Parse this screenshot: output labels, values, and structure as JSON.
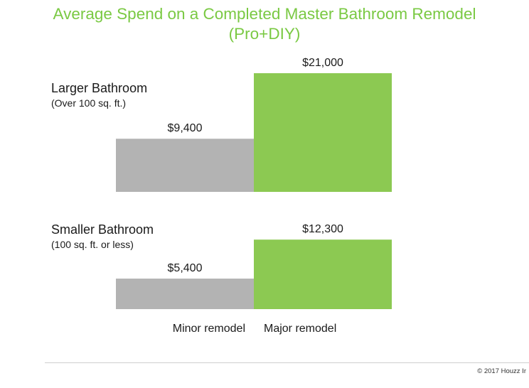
{
  "title": {
    "line1": "Average Spend on a Completed Master Bathroom Remodel",
    "line2": "(Pro+DIY)"
  },
  "colors": {
    "title": "#7ac943",
    "minor": "#b3b3b3",
    "major": "#8cc952",
    "text": "#1a1a1a"
  },
  "chart_data": {
    "type": "bar",
    "title": "Average Spend on a Completed Master Bathroom Remodel (Pro+DIY)",
    "categories": [
      "Minor remodel",
      "Major remodel"
    ],
    "groups": [
      {
        "label": "Larger Bathroom",
        "sublabel": "(Over 100 sq. ft.)",
        "values": [
          9400,
          21000
        ],
        "value_labels": [
          "$9,400",
          "$21,000"
        ]
      },
      {
        "label": "Smaller Bathroom",
        "sublabel": "(100 sq. ft. or less)",
        "values": [
          5400,
          12300
        ],
        "value_labels": [
          "$5,400",
          "$12,300"
        ]
      }
    ],
    "ylim": [
      0,
      21000
    ],
    "grid": false
  },
  "footer": {
    "copyright": "© 2017 Houzz Ir"
  }
}
